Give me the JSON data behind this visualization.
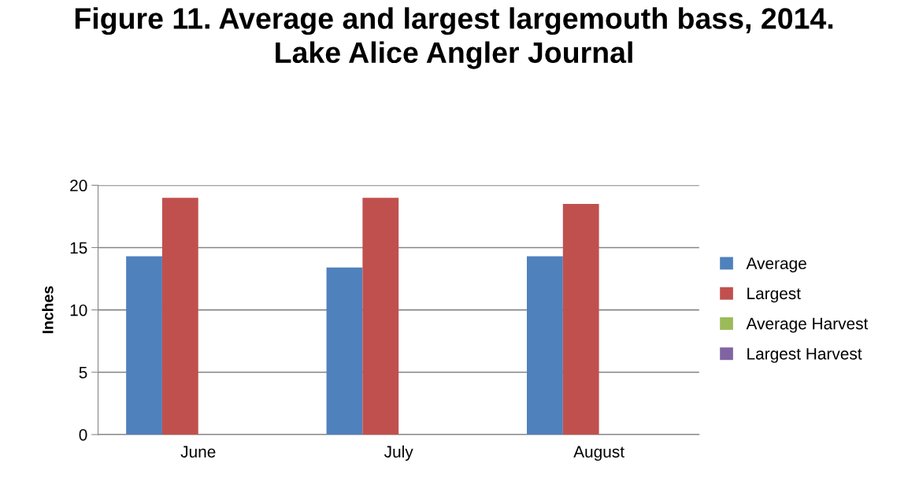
{
  "chart_data": {
    "type": "bar",
    "title": "Figure 11. Average and largest largemouth bass, 2014.\nLake Alice Angler Journal",
    "ylabel": "Inches",
    "categories": [
      "June",
      "July",
      "August"
    ],
    "series": [
      {
        "name": "Average",
        "color": "#4f81bd",
        "values": [
          14.3,
          13.4,
          14.3
        ]
      },
      {
        "name": "Largest",
        "color": "#c0504d",
        "values": [
          19,
          19,
          18.5
        ]
      },
      {
        "name": "Average Harvest",
        "color": "#9bbb59",
        "values": [
          null,
          null,
          null
        ]
      },
      {
        "name": "Largest Harvest",
        "color": "#8064a2",
        "values": [
          null,
          null,
          null
        ]
      }
    ],
    "ylim": [
      0,
      20
    ],
    "yticks": [
      0,
      5,
      10,
      15,
      20
    ],
    "grid": "y",
    "legend": "right"
  }
}
